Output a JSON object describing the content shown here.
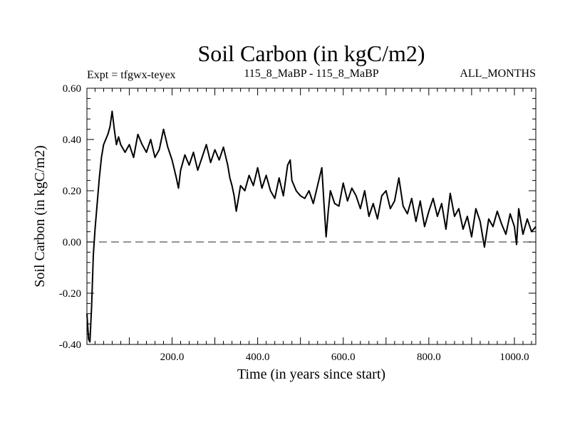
{
  "chart_data": {
    "type": "line",
    "title": "Soil Carbon (in kgC/m2)",
    "subtitle_left": "Expt = tfgwx-teyex",
    "subtitle_center": "115_8_MaBP - 115_8_MaBP",
    "subtitle_right": "ALL_MONTHS",
    "xlabel": "Time (in years since start)",
    "ylabel": "Soil Carbon (in kgC/m2)",
    "xlim": [
      1,
      1050
    ],
    "ylim": [
      -0.4,
      0.6
    ],
    "x_tick_labels": [
      "200.0",
      "400.0",
      "600.0",
      "800.0",
      "1000.0"
    ],
    "y_tick_labels": [
      "0.60",
      "0.40",
      "0.20",
      "0.00",
      "-0.20",
      "-0.40"
    ],
    "reference_line": {
      "y": 0.0,
      "style": "dashed"
    },
    "colors": {
      "line": "#000000",
      "reference": "#555555",
      "axes": "#000000"
    },
    "series": [
      {
        "name": "Soil Carbon",
        "x": [
          1,
          5,
          8,
          12,
          16,
          20,
          25,
          30,
          35,
          40,
          45,
          50,
          55,
          60,
          65,
          70,
          75,
          80,
          90,
          100,
          110,
          120,
          130,
          140,
          150,
          160,
          170,
          180,
          190,
          200,
          210,
          215,
          220,
          230,
          240,
          250,
          260,
          270,
          280,
          290,
          300,
          310,
          320,
          330,
          335,
          340,
          345,
          350,
          360,
          370,
          380,
          390,
          400,
          410,
          420,
          430,
          440,
          450,
          460,
          470,
          476,
          480,
          490,
          500,
          510,
          520,
          530,
          540,
          550,
          555,
          560,
          565,
          570,
          580,
          590,
          600,
          610,
          620,
          630,
          640,
          650,
          660,
          670,
          680,
          690,
          700,
          710,
          720,
          730,
          740,
          750,
          760,
          770,
          780,
          790,
          800,
          810,
          820,
          830,
          840,
          850,
          860,
          870,
          880,
          890,
          900,
          910,
          920,
          925,
          930,
          940,
          950,
          960,
          970,
          980,
          990,
          1000,
          1005,
          1010,
          1020,
          1030,
          1040,
          1050
        ],
        "y": [
          -0.28,
          -0.38,
          -0.39,
          -0.25,
          -0.05,
          0.05,
          0.15,
          0.25,
          0.33,
          0.38,
          0.4,
          0.42,
          0.45,
          0.51,
          0.44,
          0.38,
          0.41,
          0.38,
          0.35,
          0.38,
          0.33,
          0.42,
          0.38,
          0.35,
          0.4,
          0.33,
          0.36,
          0.44,
          0.37,
          0.32,
          0.25,
          0.21,
          0.28,
          0.34,
          0.3,
          0.35,
          0.28,
          0.33,
          0.38,
          0.31,
          0.36,
          0.32,
          0.37,
          0.3,
          0.25,
          0.22,
          0.18,
          0.12,
          0.22,
          0.2,
          0.26,
          0.22,
          0.29,
          0.21,
          0.26,
          0.2,
          0.17,
          0.25,
          0.18,
          0.3,
          0.32,
          0.24,
          0.2,
          0.18,
          0.17,
          0.2,
          0.15,
          0.22,
          0.29,
          0.15,
          0.02,
          0.12,
          0.2,
          0.15,
          0.14,
          0.23,
          0.16,
          0.21,
          0.18,
          0.13,
          0.2,
          0.1,
          0.15,
          0.09,
          0.18,
          0.2,
          0.13,
          0.16,
          0.25,
          0.14,
          0.11,
          0.17,
          0.08,
          0.16,
          0.06,
          0.12,
          0.17,
          0.1,
          0.15,
          0.05,
          0.19,
          0.1,
          0.13,
          0.05,
          0.1,
          0.02,
          0.13,
          0.08,
          0.03,
          -0.02,
          0.09,
          0.06,
          0.12,
          0.07,
          0.03,
          0.11,
          0.06,
          -0.01,
          0.13,
          0.03,
          0.09,
          0.04,
          0.06
        ]
      }
    ]
  }
}
